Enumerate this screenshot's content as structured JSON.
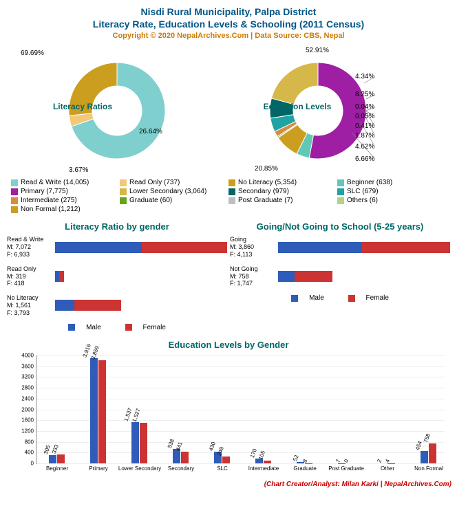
{
  "title": {
    "line1": "Nisdi Rural Municipality, Palpa District",
    "line2": "Literacy Rate, Education Levels & Schooling (2011 Census)",
    "copyright": "Copyright © 2020 NepalArchives.Com | Data Source: CBS, Nepal"
  },
  "colors": {
    "male": "#2e5cb8",
    "female": "#cc3333",
    "title": "#005588",
    "copy": "#cc7a00",
    "section": "#006666",
    "credit": "#cc0000"
  },
  "donut1": {
    "center_label": "Literacy Ratios",
    "slices": [
      {
        "label": "Read & Write (14,005)",
        "pct": 69.69,
        "color": "#7fcfcf",
        "pct_text": "69.69%"
      },
      {
        "label": "Read Only (737)",
        "pct": 3.67,
        "color": "#f2c879",
        "pct_text": "3.67%"
      },
      {
        "label": "No Literacy (5,354)",
        "pct": 26.64,
        "color": "#cc9e1f",
        "pct_text": "26.64%"
      }
    ]
  },
  "donut2": {
    "center_label": "Education Levels",
    "slices": [
      {
        "label": "Primary (7,775)",
        "pct": 52.91,
        "color": "#9e1fa3",
        "pct_text": "52.91%"
      },
      {
        "label": "Beginner (638)",
        "pct": 4.34,
        "color": "#61c9b3",
        "pct_text": "4.34%"
      },
      {
        "label": "Non Formal (1,212)",
        "pct": 8.25,
        "color": "#cc9e1f",
        "pct_text": "8.25%"
      },
      {
        "label": "Others (6)",
        "pct": 0.04,
        "color": "#b5d185",
        "pct_text": "0.04%"
      },
      {
        "label": "Post Graduate (7)",
        "pct": 0.05,
        "color": "#bfbfbf",
        "pct_text": "0.05%"
      },
      {
        "label": "Graduate (60)",
        "pct": 0.41,
        "color": "#66a61e",
        "pct_text": "0.41%"
      },
      {
        "label": "Intermediate (275)",
        "pct": 1.87,
        "color": "#d98c3f",
        "pct_text": "1.87%"
      },
      {
        "label": "SLC (679)",
        "pct": 4.62,
        "color": "#1fa3a3",
        "pct_text": "4.62%"
      },
      {
        "label": "Secondary (979)",
        "pct": 6.66,
        "color": "#006666",
        "pct_text": "6.66%"
      },
      {
        "label": "Lower Secondary (3,064)",
        "pct": 20.85,
        "color": "#d6b84a",
        "pct_text": "20.85%"
      }
    ]
  },
  "legend_combined": [
    {
      "label": "Read & Write (14,005)",
      "color": "#7fcfcf"
    },
    {
      "label": "Read Only (737)",
      "color": "#f2c879"
    },
    {
      "label": "No Literacy (5,354)",
      "color": "#cc9e1f"
    },
    {
      "label": "Beginner (638)",
      "color": "#61c9b3"
    },
    {
      "label": "Primary (7,775)",
      "color": "#9e1fa3"
    },
    {
      "label": "Lower Secondary (3,064)",
      "color": "#d6b84a"
    },
    {
      "label": "Secondary (979)",
      "color": "#006666"
    },
    {
      "label": "SLC (679)",
      "color": "#1fa3a3"
    },
    {
      "label": "Intermediate (275)",
      "color": "#d98c3f"
    },
    {
      "label": "Graduate (60)",
      "color": "#66a61e"
    },
    {
      "label": "Post Graduate (7)",
      "color": "#bfbfbf"
    },
    {
      "label": "Others (6)",
      "color": "#b5d185"
    },
    {
      "label": "Non Formal (1,212)",
      "color": "#cc9e1f"
    }
  ],
  "hbar1": {
    "title": "Literacy Ratio by gender",
    "max": 14005,
    "rows": [
      {
        "label": "Read & Write",
        "m_label": "M: 7,072",
        "f_label": "F: 6,933",
        "m": 7072,
        "f": 6933
      },
      {
        "label": "Read Only",
        "m_label": "M: 319",
        "f_label": "F: 418",
        "m": 319,
        "f": 418
      },
      {
        "label": "No Literacy",
        "m_label": "M: 1,561",
        "f_label": "F: 3,793",
        "m": 1561,
        "f": 3793
      }
    ]
  },
  "hbar2": {
    "title": "Going/Not Going to School (5-25 years)",
    "max": 7973,
    "rows": [
      {
        "label": "Going",
        "m_label": "M: 3,860",
        "f_label": "F: 4,113",
        "m": 3860,
        "f": 4113
      },
      {
        "label": "Not Going",
        "m_label": "M: 758",
        "f_label": "F: 1,747",
        "m": 758,
        "f": 1747
      }
    ]
  },
  "mini_legend": {
    "male": "Male",
    "female": "Female"
  },
  "vbar": {
    "title": "Education Levels by Gender",
    "ymax": 4000,
    "ystep": 400,
    "categories": [
      {
        "name": "Beginner",
        "m": 305,
        "f": 333
      },
      {
        "name": "Primary",
        "m": 3916,
        "f": 3859
      },
      {
        "name": "Lower Secondary",
        "m": 1537,
        "f": 1527
      },
      {
        "name": "Secondary",
        "m": 538,
        "f": 441
      },
      {
        "name": "SLC",
        "m": 430,
        "f": 249
      },
      {
        "name": "Intermediate",
        "m": 170,
        "f": 105
      },
      {
        "name": "Graduate",
        "m": 52,
        "f": 8
      },
      {
        "name": "Post Graduate",
        "m": 7,
        "f": 0
      },
      {
        "name": "Other",
        "m": 2,
        "f": 4
      },
      {
        "name": "Non Formal",
        "m": 454,
        "f": 758
      }
    ]
  },
  "credit": "(Chart Creator/Analyst: Milan Karki | NepalArchives.Com)"
}
